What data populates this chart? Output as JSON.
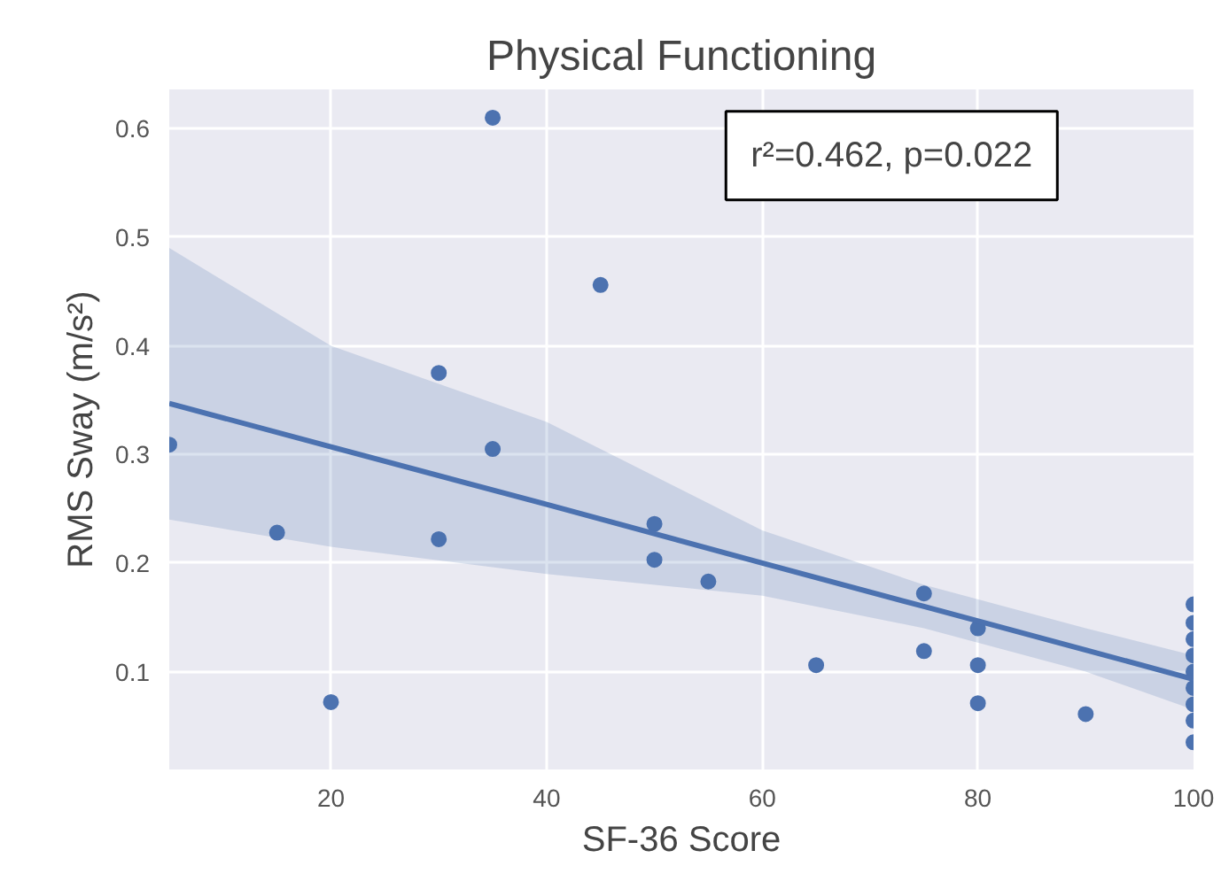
{
  "chart_data": {
    "type": "scatter",
    "title": "Physical Functioning",
    "xlabel": "SF-36 Score",
    "ylabel": "RMS Sway (m/s²)",
    "xlim": [
      5,
      100
    ],
    "ylim": [
      0.01,
      0.636
    ],
    "xticks": [
      20,
      40,
      60,
      80,
      100
    ],
    "yticks": [
      0.1,
      0.2,
      0.3,
      0.4,
      0.5,
      0.6
    ],
    "grid": true,
    "annotations": [
      "r²=0.462, p=0.022"
    ],
    "series": [
      {
        "marker": "circle",
        "color": "#4c72b0",
        "x": [
          5,
          15,
          20,
          30,
          30,
          35,
          35,
          45,
          50,
          50,
          55,
          65,
          75,
          75,
          80,
          80,
          80,
          90,
          100,
          100,
          100,
          100,
          100,
          100,
          100,
          100,
          100
        ],
        "values": [
          0.309,
          0.228,
          0.072,
          0.375,
          0.222,
          0.61,
          0.305,
          0.456,
          0.236,
          0.203,
          0.183,
          0.106,
          0.172,
          0.119,
          0.14,
          0.106,
          0.071,
          0.061,
          0.162,
          0.145,
          0.13,
          0.115,
          0.1,
          0.085,
          0.07,
          0.055,
          0.035
        ]
      },
      {
        "type": "line",
        "color": "#4c72b0",
        "x": [
          5,
          20,
          40,
          60,
          75,
          90,
          100
        ],
        "values": [
          0.347,
          0.307,
          0.254,
          0.2,
          0.16,
          0.12,
          0.093
        ],
        "lower": [
          0.24,
          0.215,
          0.19,
          0.17,
          0.14,
          0.1,
          0.065
        ],
        "upper": [
          0.49,
          0.4,
          0.33,
          0.23,
          0.18,
          0.14,
          0.115
        ]
      }
    ]
  }
}
